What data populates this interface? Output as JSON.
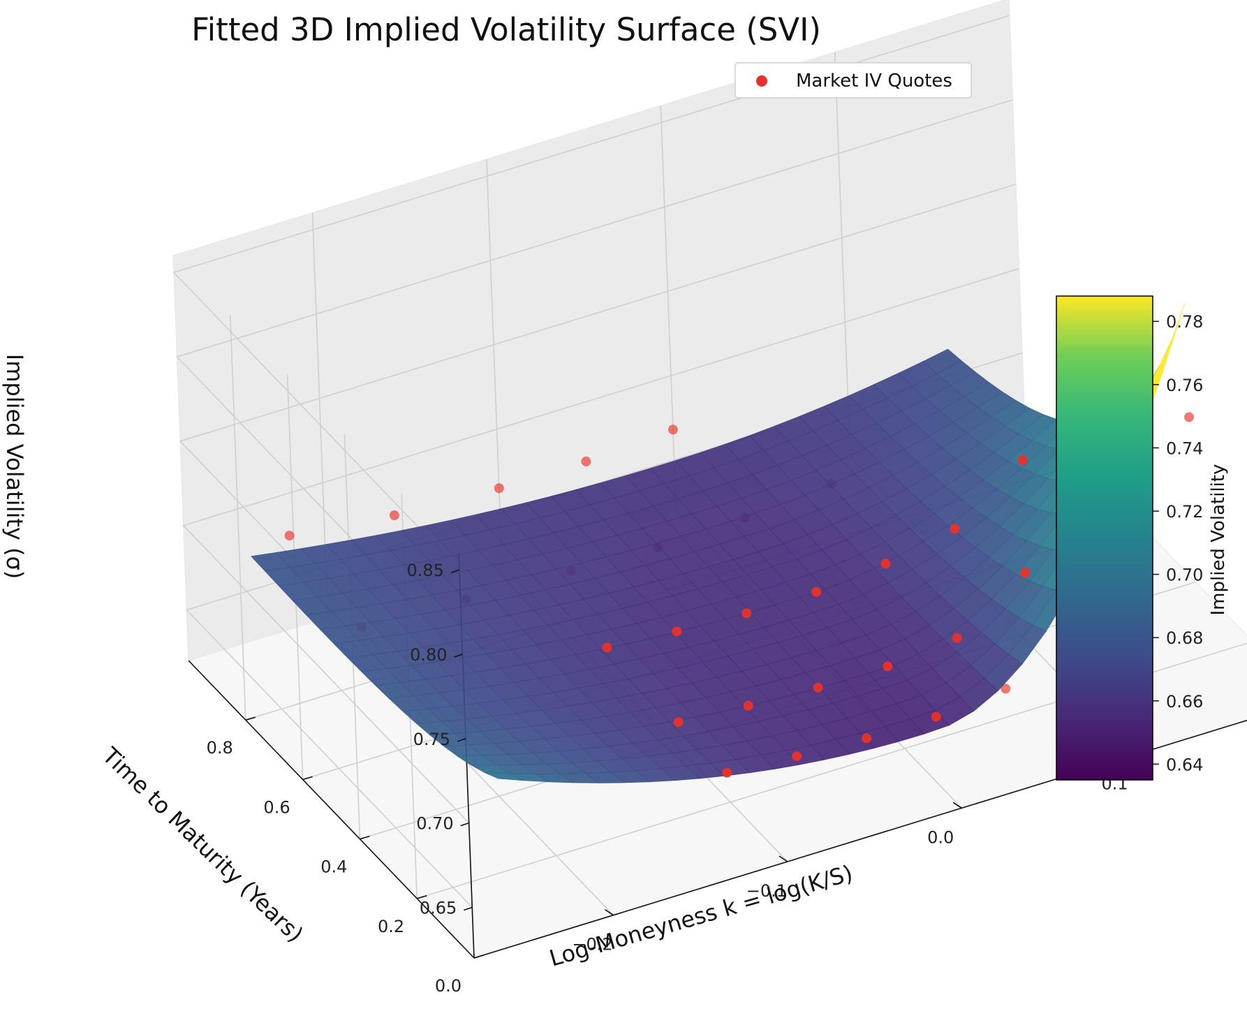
{
  "chart_data": {
    "type": "surface3d",
    "title": "Fitted 3D Implied Volatility Surface (SVI)",
    "xlabel": "Log-Moneyness k = log(K/S)",
    "ylabel": "Time to Maturity (Years)",
    "zlabel": "Implied Volatility (σ)",
    "xlim": [
      -0.28,
      0.2
    ],
    "ylim": [
      0.0,
      1.0
    ],
    "zlim": [
      0.62,
      0.86
    ],
    "x_ticks": [
      "−0.2",
      "−0.1",
      "0.0",
      "0.1"
    ],
    "x_tick_values": [
      -0.2,
      -0.1,
      0.0,
      0.1
    ],
    "y_ticks": [
      "0.0",
      "0.2",
      "0.4",
      "0.6",
      "0.8"
    ],
    "y_tick_values": [
      0.0,
      0.2,
      0.4,
      0.6,
      0.8
    ],
    "z_ticks": [
      "0.65",
      "0.70",
      "0.75",
      "0.80",
      "0.85"
    ],
    "z_tick_values": [
      0.65,
      0.7,
      0.75,
      0.8,
      0.85
    ],
    "grid": true,
    "colormap": "viridis",
    "colorbar": {
      "label": "Implied Volatility",
      "range": [
        0.635,
        0.788
      ],
      "ticks": [
        "0.64",
        "0.66",
        "0.68",
        "0.70",
        "0.72",
        "0.74",
        "0.76",
        "0.78"
      ],
      "tick_values": [
        0.64,
        0.66,
        0.68,
        0.7,
        0.72,
        0.74,
        0.76,
        0.78
      ]
    },
    "legend": {
      "position": "top-right",
      "entries": [
        "Market IV Quotes"
      ]
    },
    "series": [
      {
        "name": "Market IV Quotes",
        "kind": "scatter",
        "color": "#e8312a",
        "points": [
          [
            -0.12,
            0.08,
            0.665
          ],
          [
            -0.08,
            0.08,
            0.662
          ],
          [
            -0.04,
            0.08,
            0.66
          ],
          [
            0.0,
            0.08,
            0.66
          ],
          [
            0.04,
            0.08,
            0.664
          ],
          [
            0.08,
            0.08,
            0.67
          ],
          [
            0.12,
            0.08,
            0.705
          ],
          [
            0.15,
            0.08,
            0.79
          ],
          [
            -0.12,
            0.25,
            0.665
          ],
          [
            -0.08,
            0.25,
            0.662
          ],
          [
            -0.04,
            0.25,
            0.66
          ],
          [
            0.0,
            0.25,
            0.66
          ],
          [
            0.04,
            0.25,
            0.664
          ],
          [
            0.08,
            0.25,
            0.69
          ],
          [
            0.12,
            0.25,
            0.725
          ],
          [
            0.15,
            0.25,
            0.7
          ],
          [
            -0.12,
            0.5,
            0.665
          ],
          [
            -0.08,
            0.5,
            0.662
          ],
          [
            -0.04,
            0.5,
            0.66
          ],
          [
            0.0,
            0.5,
            0.66
          ],
          [
            0.04,
            0.5,
            0.664
          ],
          [
            0.08,
            0.5,
            0.672
          ],
          [
            0.12,
            0.5,
            0.7
          ],
          [
            0.15,
            0.5,
            0.71
          ],
          [
            -0.22,
            0.75,
            0.665
          ],
          [
            -0.16,
            0.75,
            0.662
          ],
          [
            -0.1,
            0.75,
            0.66
          ],
          [
            -0.05,
            0.75,
            0.658
          ],
          [
            0.0,
            0.75,
            0.66
          ],
          [
            0.05,
            0.75,
            0.664
          ],
          [
            -0.22,
            1.0,
            0.675
          ],
          [
            -0.16,
            1.0,
            0.668
          ],
          [
            -0.1,
            1.0,
            0.665
          ],
          [
            -0.05,
            1.0,
            0.665
          ],
          [
            0.0,
            1.0,
            0.668
          ]
        ]
      },
      {
        "name": "",
        "kind": "surface",
        "k_range": [
          -0.25,
          0.15
        ],
        "t_range": [
          0.08,
          0.95
        ],
        "iv_at_k_-0.25": 0.655,
        "iv_at_k_0": 0.66,
        "iv_at_k_0.15_front": 0.788,
        "iv_at_k_0.15_back": 0.665
      }
    ]
  }
}
